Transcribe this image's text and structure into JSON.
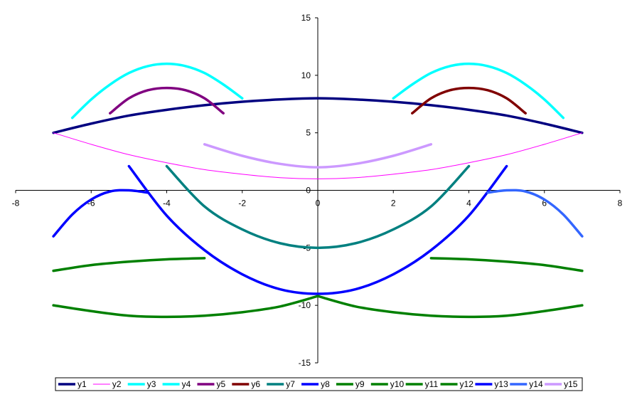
{
  "chart_data": {
    "type": "line",
    "title": "",
    "xlabel": "",
    "ylabel": "",
    "xlim": [
      -8,
      8
    ],
    "ylim": [
      -15,
      15
    ],
    "x_ticks": [
      "-8",
      "-6",
      "-4",
      "-2",
      "0",
      "2",
      "4",
      "6",
      "8"
    ],
    "y_ticks": [
      "15",
      "10",
      "5",
      "0",
      "-5",
      "-10",
      "-15"
    ],
    "legend_position": "bottom",
    "series": [
      {
        "name": "y1",
        "color": "#000080",
        "width": 3.5,
        "x": [
          -7,
          -6,
          -5,
          -4,
          -3,
          -2,
          -1,
          0,
          1,
          2,
          3,
          4,
          5,
          6,
          7
        ],
        "y": [
          5,
          5.8,
          6.5,
          7,
          7.4,
          7.7,
          7.9,
          8,
          7.9,
          7.7,
          7.4,
          7,
          6.5,
          5.8,
          5
        ]
      },
      {
        "name": "y2",
        "color": "#ff00ff",
        "width": 1,
        "x": [
          -7,
          -6,
          -5,
          -4,
          -3,
          -2,
          -1,
          0,
          1,
          2,
          3,
          4,
          5,
          6,
          7
        ],
        "y": [
          5,
          4,
          3.1,
          2.4,
          1.8,
          1.4,
          1.1,
          1,
          1.1,
          1.4,
          1.8,
          2.4,
          3.1,
          4,
          5
        ]
      },
      {
        "name": "y3",
        "color": "#00ffff",
        "width": 3.5,
        "x": [
          -6.5,
          -6,
          -5.5,
          -5,
          -4.5,
          -4,
          -3.5,
          -3,
          -2.5,
          -2
        ],
        "y": [
          6.3,
          7.9,
          9.2,
          10.2,
          10.8,
          11,
          10.8,
          10.2,
          9.2,
          8
        ]
      },
      {
        "name": "y4",
        "color": "#00ffff",
        "width": 3.5,
        "x": [
          2,
          2.5,
          3,
          3.5,
          4,
          4.5,
          5,
          5.5,
          6,
          6.5
        ],
        "y": [
          8,
          9.2,
          10.2,
          10.8,
          11,
          10.8,
          10.2,
          9.2,
          7.9,
          6.3
        ]
      },
      {
        "name": "y5",
        "color": "#800080",
        "width": 3.5,
        "x": [
          -5.5,
          -5,
          -4.5,
          -4,
          -3.5,
          -3,
          -2.5
        ],
        "y": [
          6.7,
          8,
          8.7,
          8.9,
          8.7,
          8,
          6.7
        ]
      },
      {
        "name": "y6",
        "color": "#800000",
        "width": 3.5,
        "x": [
          2.5,
          3,
          3.5,
          4,
          4.5,
          5,
          5.5
        ],
        "y": [
          6.7,
          8,
          8.7,
          8.9,
          8.7,
          8,
          6.7
        ]
      },
      {
        "name": "y7",
        "color": "#008080",
        "width": 3.5,
        "x": [
          -4,
          -3,
          -2,
          -1,
          0,
          1,
          2,
          3,
          4
        ],
        "y": [
          2.1,
          -1.4,
          -3.4,
          -4.6,
          -5,
          -4.6,
          -3.4,
          -1.4,
          2.1
        ]
      },
      {
        "name": "y8",
        "color": "#0000ff",
        "width": 3.5,
        "x": [
          -5,
          -4,
          -3,
          -2,
          -1,
          0,
          1,
          2,
          3,
          4,
          5
        ],
        "y": [
          2.1,
          -2.2,
          -5.2,
          -7.3,
          -8.6,
          -9,
          -8.6,
          -7.3,
          -5.2,
          -2.2,
          2.1
        ]
      },
      {
        "name": "y9",
        "color": "#008000",
        "width": 3.5,
        "x": [
          -7,
          -6,
          -5,
          -4,
          -3
        ],
        "y": [
          -7,
          -6.5,
          -6.2,
          -6,
          -5.9
        ]
      },
      {
        "name": "y10",
        "color": "#008000",
        "width": 3.5,
        "x": [
          3,
          4,
          5,
          6,
          7
        ],
        "y": [
          -5.9,
          -6,
          -6.2,
          -6.5,
          -7
        ]
      },
      {
        "name": "y11",
        "color": "#008000",
        "width": 3.5,
        "x": [
          -7,
          -6,
          -5,
          -4,
          -3,
          -2,
          -1,
          0
        ],
        "y": [
          -10,
          -10.5,
          -10.9,
          -11,
          -10.9,
          -10.6,
          -10.1,
          -9.2
        ]
      },
      {
        "name": "y12",
        "color": "#008000",
        "width": 3.5,
        "x": [
          0,
          1,
          2,
          3,
          4,
          5,
          6,
          7
        ],
        "y": [
          -9.2,
          -10.1,
          -10.6,
          -10.9,
          -11,
          -10.9,
          -10.5,
          -10
        ]
      },
      {
        "name": "y13",
        "color": "#0000ff",
        "width": 3.5,
        "x": [
          -7,
          -6.5,
          -6,
          -5.5,
          -5,
          -4.5
        ],
        "y": [
          -4,
          -2.1,
          -0.8,
          -0.1,
          0,
          -0.2
        ]
      },
      {
        "name": "y14",
        "color": "#3366ff",
        "width": 3.5,
        "x": [
          4.5,
          5,
          5.5,
          6,
          6.5,
          7
        ],
        "y": [
          -0.2,
          0,
          -0.1,
          -0.8,
          -2.1,
          -4
        ]
      },
      {
        "name": "y15",
        "color": "#cc99ff",
        "width": 3.5,
        "x": [
          -3,
          -2,
          -1,
          0,
          1,
          2,
          3
        ],
        "y": [
          4,
          3,
          2.3,
          2,
          2.3,
          3,
          4
        ]
      }
    ]
  }
}
